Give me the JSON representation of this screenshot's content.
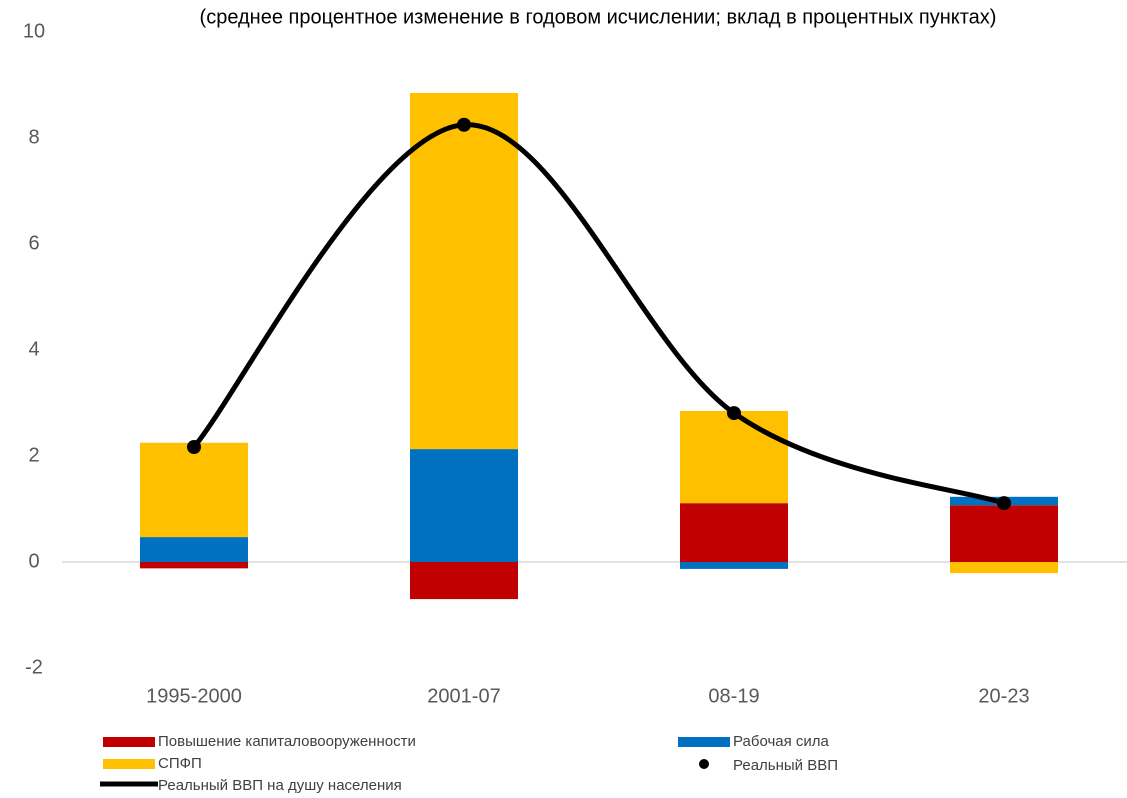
{
  "chart_data": {
    "type": "bar",
    "title": "(среднее процентное изменение в годовом исчислении; вклад в процентных пунктах)",
    "categories": [
      "1995-2000",
      "2001-07",
      "08-19",
      "20-23"
    ],
    "series": [
      {
        "name": "Повышение капиталовооруженности",
        "color": "#c00000",
        "type": "bar",
        "values": [
          -0.12,
          -0.7,
          1.11,
          1.07
        ]
      },
      {
        "name": "Рабочая сила",
        "color": "#0070c0",
        "type": "bar",
        "values": [
          0.47,
          2.13,
          -0.13,
          0.16
        ]
      },
      {
        "name": "СПФП",
        "color": "#ffc000",
        "type": "bar",
        "values": [
          1.78,
          6.72,
          1.74,
          -0.21
        ]
      },
      {
        "name": "Реальный ВВП",
        "color": "#000000",
        "type": "scatter",
        "values": [
          2.17,
          8.25,
          2.81,
          1.11
        ]
      },
      {
        "name": "Реальный ВВП на душу населения",
        "color": "#000000",
        "type": "line",
        "values": [
          2.17,
          8.25,
          2.81,
          1.11
        ]
      }
    ],
    "ylim": [
      -2,
      10
    ],
    "yticks": [
      -2,
      0,
      2,
      4,
      6,
      8,
      10
    ],
    "grid": false
  }
}
